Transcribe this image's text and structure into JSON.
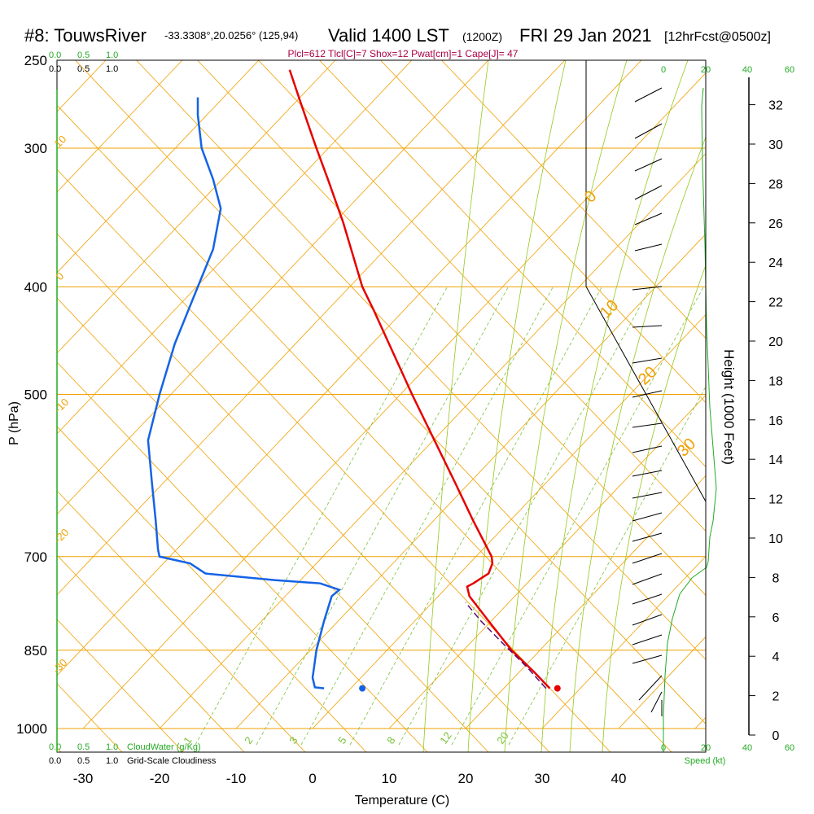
{
  "header": {
    "station": "#8: TouwsRiver",
    "coords": "-33.3308°,20.0256° (125,94)",
    "valid": "Valid 1400 LST",
    "valid_z": "(1200Z)",
    "date": "FRI 29 Jan 2021",
    "forecast": "[12hrFcst@0500z]"
  },
  "indices": "Plcl=612 Tlcl[C]=7 Shox=12 Pwat[cm]=1 Cape[J]= 47",
  "scales": {
    "cloudwater_ticks": [
      "0.0",
      "0.5",
      "1.0"
    ],
    "cloudiness_ticks": [
      "0.0",
      "0.5",
      "1.0"
    ],
    "cloudwater_label": "CloudWater (g/Kg)",
    "cloudiness_label": "Grid-Scale Cloudiness",
    "speed_ticks": [
      "0",
      "20",
      "40",
      "60"
    ],
    "speed_label": "Speed (kt)"
  },
  "colors": {
    "temperature": "#e60000",
    "dewpoint": "#1463e6",
    "parcel": "#5a0a78",
    "isotherm": "#f0a000",
    "mixing_ratio": "#7ac23a",
    "moist_adiabat": "#96c81e",
    "dry_adiabat_label": "#f0a000",
    "green_text": "#22aa22",
    "index_text": "#aa0044"
  },
  "chart_data": {
    "type": "line",
    "title": "Valid 1400 LST (1200Z) FRI 29 Jan 2021",
    "xlabel": "Temperature (C)",
    "ylabel": "P (hPa)",
    "right_axis_label": "Height (1000 Feet)",
    "x_ticks": [
      -30,
      -20,
      -10,
      0,
      10,
      20,
      30,
      40
    ],
    "p_ticks": [
      250,
      300,
      400,
      500,
      700,
      850,
      1000
    ],
    "height_ticks": [
      0,
      2,
      4,
      6,
      8,
      10,
      12,
      14,
      16,
      18,
      20,
      22,
      24,
      26,
      28,
      30,
      32
    ],
    "dry_adiabat_labels": [
      "10",
      "0",
      "-10",
      "-20",
      "-30",
      "0",
      "10",
      "20",
      "30"
    ],
    "mixing_ratio_labels": [
      "1",
      "2",
      "3",
      "5",
      "8",
      "12",
      "20"
    ],
    "series": [
      {
        "name": "Temperature",
        "points": [
          [
            31,
            920
          ],
          [
            29,
            890
          ],
          [
            26,
            850
          ],
          [
            23,
            800
          ],
          [
            20.5,
            760
          ],
          [
            20.2,
            745
          ],
          [
            21,
            740
          ],
          [
            23,
            725
          ],
          [
            23.5,
            710
          ],
          [
            23.4,
            700
          ],
          [
            21,
            650
          ],
          [
            18.6,
            600
          ],
          [
            13,
            500
          ],
          [
            8,
            420
          ],
          [
            6.5,
            400
          ],
          [
            4,
            350
          ],
          [
            2,
            320
          ],
          [
            0.5,
            300
          ],
          [
            -1.4,
            275
          ],
          [
            -3,
            255
          ]
        ]
      },
      {
        "name": "Dewpoint",
        "points": [
          [
            1.5,
            920
          ],
          [
            0.3,
            918
          ],
          [
            0,
            900
          ],
          [
            0.2,
            880
          ],
          [
            0.5,
            850
          ],
          [
            1.5,
            800
          ],
          [
            2.5,
            760
          ],
          [
            3.5,
            750
          ],
          [
            1,
            740
          ],
          [
            -5,
            735
          ],
          [
            -14,
            725
          ],
          [
            -16,
            710
          ],
          [
            -20,
            700
          ],
          [
            -20.2,
            690
          ],
          [
            -20.5,
            650
          ],
          [
            -21,
            600
          ],
          [
            -21.5,
            550
          ],
          [
            -20,
            500
          ],
          [
            -18,
            450
          ],
          [
            -15,
            400
          ],
          [
            -13,
            370
          ],
          [
            -12,
            340
          ],
          [
            -13,
            320
          ],
          [
            -14.5,
            300
          ],
          [
            -15,
            280
          ],
          [
            -15,
            270
          ]
        ]
      },
      {
        "name": "Parcel",
        "points": [
          [
            30.5,
            920
          ],
          [
            28,
            880
          ],
          [
            25,
            840
          ],
          [
            22,
            800
          ],
          [
            20,
            770
          ]
        ]
      }
    ],
    "surface_temperature": [
      32,
      920
    ],
    "surface_dewpoint": [
      6.5,
      920
    ]
  }
}
